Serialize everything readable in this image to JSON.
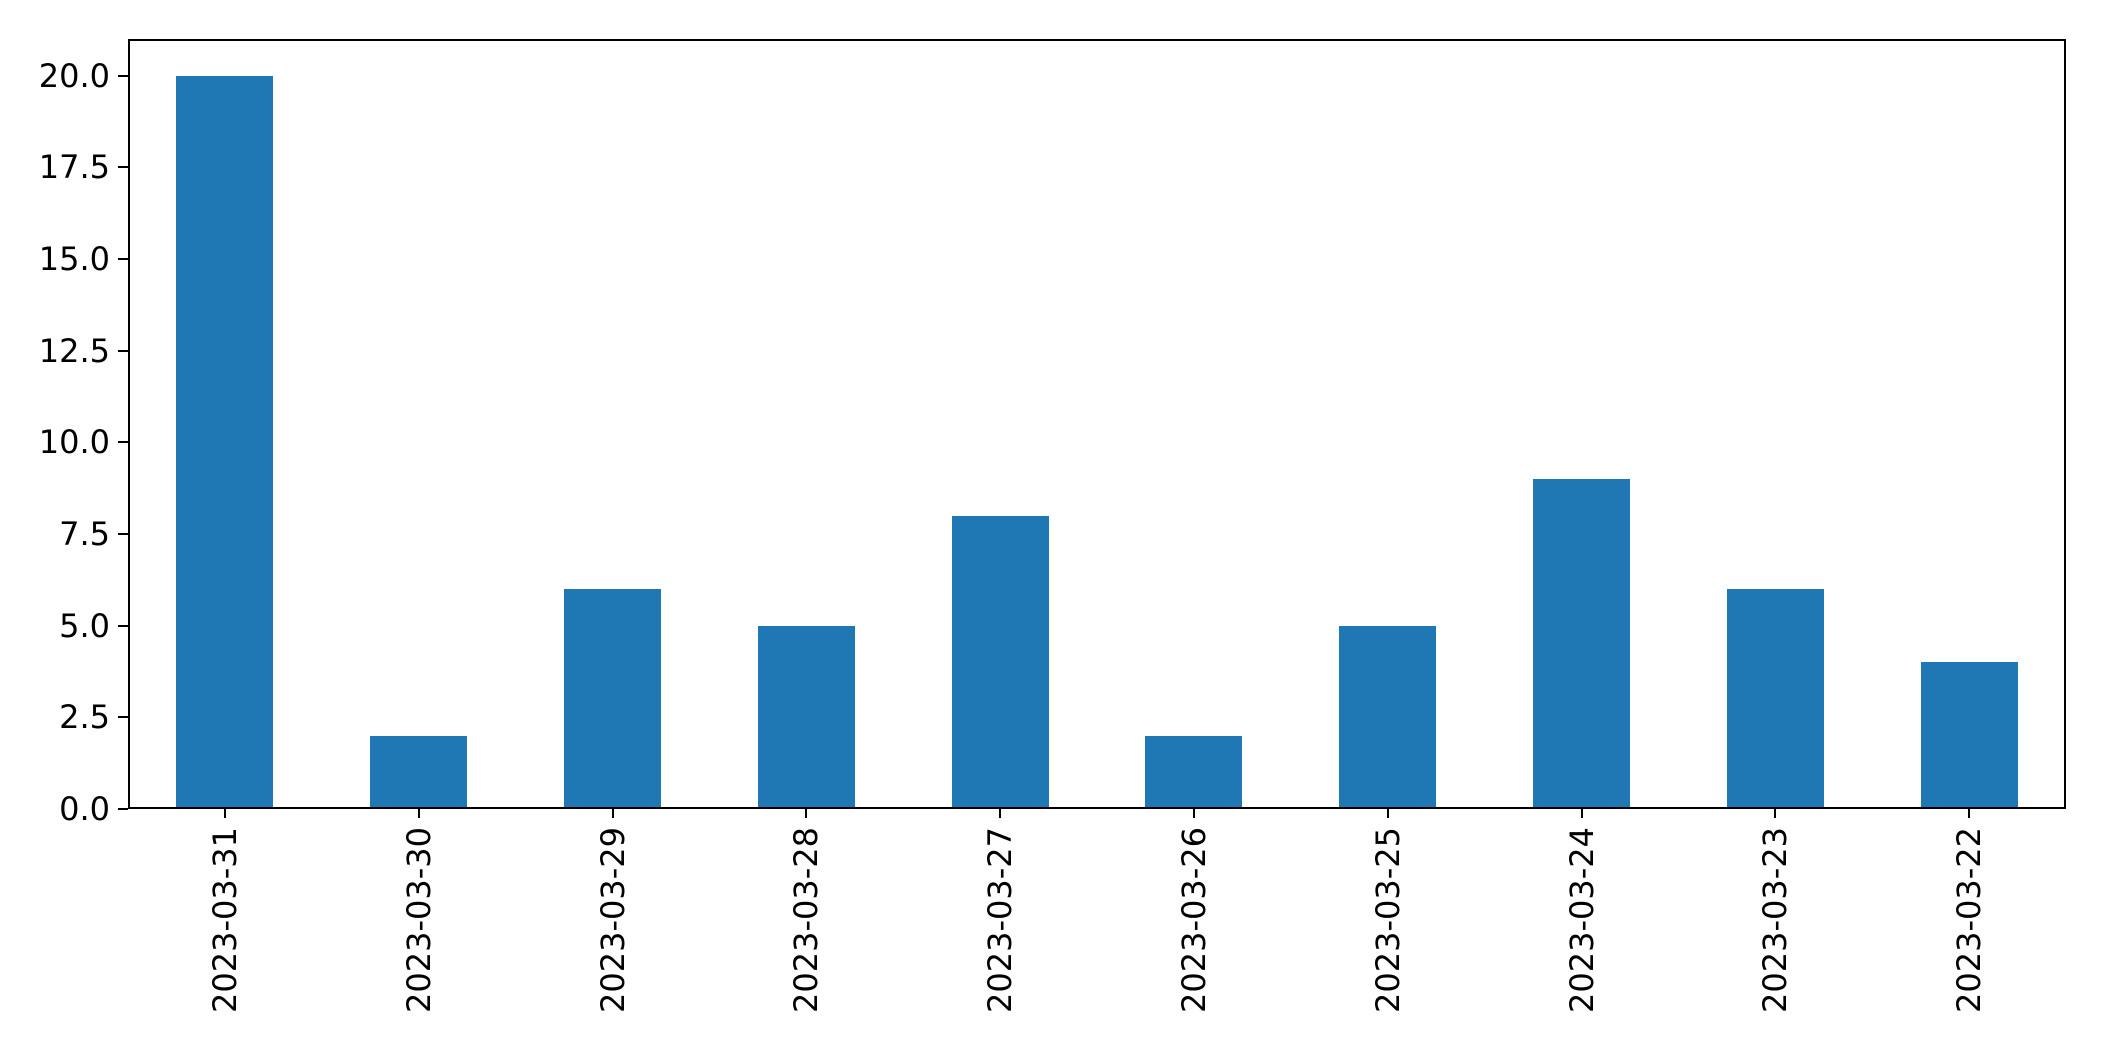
{
  "chart_data": {
    "type": "bar",
    "title": "",
    "xlabel": "",
    "ylabel": "",
    "categories": [
      "2023-03-31",
      "2023-03-30",
      "2023-03-29",
      "2023-03-28",
      "2023-03-27",
      "2023-03-26",
      "2023-03-25",
      "2023-03-24",
      "2023-03-23",
      "2023-03-22"
    ],
    "values": [
      20,
      2,
      6,
      5,
      8,
      2,
      5,
      9,
      6,
      4
    ],
    "ylim": [
      0,
      21
    ],
    "yticks": [
      0.0,
      2.5,
      5.0,
      7.5,
      10.0,
      12.5,
      15.0,
      17.5,
      20.0
    ],
    "ytick_labels": [
      "0.0",
      "2.5",
      "5.0",
      "7.5",
      "10.0",
      "12.5",
      "15.0",
      "17.5",
      "20.0"
    ],
    "x_tick_rotation": 90,
    "grid": false,
    "legend": null,
    "bar_rel_width": 0.5,
    "bar_color": "#1f77b4",
    "axis_color": "#000000",
    "background": "#ffffff"
  }
}
